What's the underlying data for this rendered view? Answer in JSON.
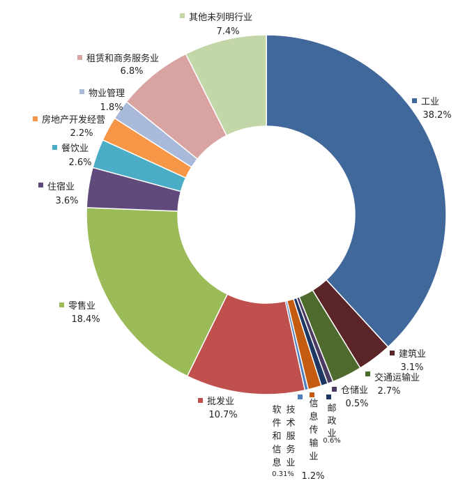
{
  "chart_data": {
    "type": "pie",
    "donut": true,
    "title": "",
    "legend": "none",
    "slices": [
      {
        "name": "工业",
        "value": 38.2,
        "label": "38.2%",
        "color": "#41689A"
      },
      {
        "name": "建筑业",
        "value": 3.1,
        "label": "3.1%",
        "color": "#5B2426"
      },
      {
        "name": "交通运输业",
        "value": 2.7,
        "label": "2.7%",
        "color": "#4E6A2C"
      },
      {
        "name": "仓储业",
        "value": 0.5,
        "label": "0.5%",
        "color": "#4B3B63"
      },
      {
        "name": "邮政业",
        "value": 0.6,
        "label": "0.6%",
        "color": "#1F3863"
      },
      {
        "name": "信息传输业",
        "value": 1.2,
        "label": "1.2%",
        "color": "#C55A11"
      },
      {
        "name": "软件和信息技术服务业",
        "value": 0.31,
        "label": "0.31%",
        "color": "#4F7EBD"
      },
      {
        "name": "批发业",
        "value": 10.7,
        "label": "10.7%",
        "color": "#C0504D"
      },
      {
        "name": "零售业",
        "value": 18.4,
        "label": "18.4%",
        "color": "#9BBB59"
      },
      {
        "name": "住宿业",
        "value": 3.6,
        "label": "3.6%",
        "color": "#604A7B"
      },
      {
        "name": "餐饮业",
        "value": 2.6,
        "label": "2.6%",
        "color": "#4BACC6"
      },
      {
        "name": "房地产开发经营",
        "value": 2.2,
        "label": "2.2%",
        "color": "#F79646"
      },
      {
        "name": "物业管理",
        "value": 1.8,
        "label": "1.8%",
        "color": "#A9B9DA"
      },
      {
        "name": "租赁和商务服务业",
        "value": 6.8,
        "label": "6.8%",
        "color": "#D9A3A2"
      },
      {
        "name": "其他未列明行业",
        "value": 7.4,
        "label": "7.4%",
        "color": "#C3D6A8"
      }
    ]
  }
}
